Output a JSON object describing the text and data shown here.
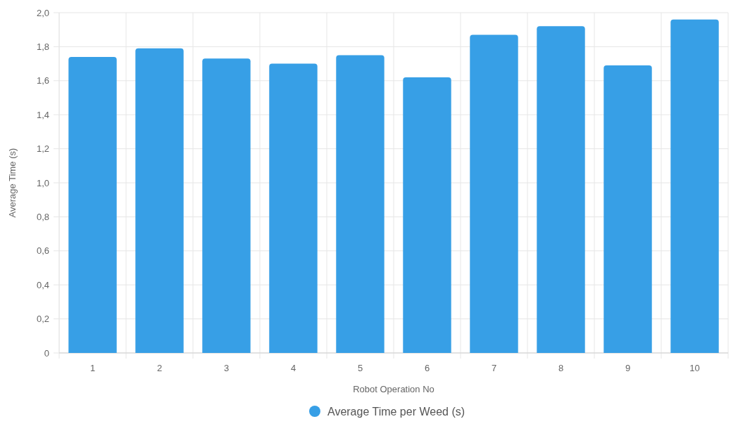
{
  "chart_data": {
    "type": "bar",
    "xlabel": "Robot Operation No",
    "ylabel": "Average Time (s)",
    "categories": [
      "1",
      "2",
      "3",
      "4",
      "5",
      "6",
      "7",
      "8",
      "9",
      "10"
    ],
    "series": [
      {
        "name": "Average Time per Weed (s)",
        "color": "#379fe6",
        "values": [
          1.74,
          1.79,
          1.73,
          1.7,
          1.75,
          1.62,
          1.87,
          1.92,
          1.69,
          1.96
        ]
      }
    ],
    "ylim": [
      0,
      2
    ],
    "yticks": [
      0,
      {
        "value": 0.2,
        "label": "0,2"
      },
      {
        "value": 0.4,
        "label": "0,4"
      },
      {
        "value": 0.6,
        "label": "0,6"
      },
      {
        "value": 0.8,
        "label": "0,8"
      },
      {
        "value": 1,
        "label": "1,0"
      },
      {
        "value": 1.2,
        "label": "1,2"
      },
      {
        "value": 1.4,
        "label": "1,4"
      },
      {
        "value": 1.6,
        "label": "1,6"
      },
      {
        "value": 1.8,
        "label": "1,8"
      },
      {
        "value": 2,
        "label": "2,0"
      }
    ],
    "grid": true,
    "legend": "bottom"
  }
}
